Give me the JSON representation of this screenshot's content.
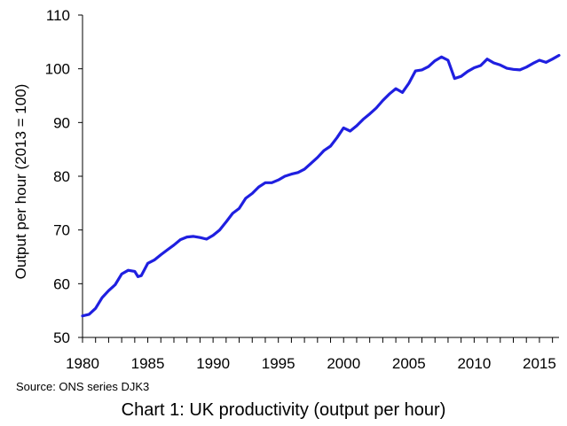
{
  "chart_data": {
    "type": "line",
    "title": "",
    "xlabel": "",
    "ylabel": "Output per hour (2013 = 100)",
    "xlim": [
      1980,
      2016.5
    ],
    "ylim": [
      50,
      110
    ],
    "yticks": [
      50,
      60,
      70,
      80,
      90,
      100,
      110
    ],
    "xtick_labels": [
      "1980",
      "1985",
      "1990",
      "1995",
      "2000",
      "2005",
      "2010",
      "2015"
    ],
    "xtick_positions": [
      1980,
      1985,
      1990,
      1995,
      2000,
      2005,
      2010,
      2015
    ],
    "grid": false,
    "legend": "none",
    "series": [
      {
        "color": "#1f1fe0",
        "x": [
          1980.0,
          1980.5,
          1981.0,
          1981.5,
          1982.0,
          1982.5,
          1983.0,
          1983.5,
          1984.0,
          1984.25,
          1984.5,
          1985.0,
          1985.5,
          1986.0,
          1986.5,
          1987.0,
          1987.5,
          1988.0,
          1988.5,
          1989.0,
          1989.5,
          1990.0,
          1990.5,
          1991.0,
          1991.5,
          1992.0,
          1992.5,
          1993.0,
          1993.5,
          1994.0,
          1994.5,
          1995.0,
          1995.5,
          1996.0,
          1996.5,
          1997.0,
          1997.5,
          1998.0,
          1998.5,
          1999.0,
          1999.5,
          2000.0,
          2000.5,
          2001.0,
          2001.5,
          2002.0,
          2002.5,
          2003.0,
          2003.5,
          2004.0,
          2004.5,
          2005.0,
          2005.5,
          2006.0,
          2006.5,
          2007.0,
          2007.5,
          2008.0,
          2008.5,
          2009.0,
          2009.5,
          2010.0,
          2010.5,
          2011.0,
          2011.5,
          2012.0,
          2012.5,
          2013.0,
          2013.5,
          2014.0,
          2014.5,
          2015.0,
          2015.5,
          2016.0,
          2016.5
        ],
        "values": [
          54.0,
          54.3,
          55.4,
          57.4,
          58.7,
          59.8,
          61.8,
          62.5,
          62.3,
          61.3,
          61.5,
          63.8,
          64.4,
          65.4,
          66.3,
          67.2,
          68.2,
          68.7,
          68.8,
          68.6,
          68.3,
          69.0,
          70.0,
          71.5,
          73.1,
          74.0,
          75.9,
          76.8,
          78.0,
          78.8,
          78.8,
          79.3,
          80.0,
          80.4,
          80.7,
          81.3,
          82.4,
          83.5,
          84.8,
          85.6,
          87.2,
          89.0,
          88.4,
          89.4,
          90.6,
          91.6,
          92.7,
          94.1,
          95.3,
          96.3,
          95.6,
          97.3,
          99.6,
          99.8,
          100.4,
          101.5,
          102.2,
          101.6,
          98.2,
          98.6,
          99.5,
          100.2,
          100.6,
          101.8,
          101.1,
          100.7,
          100.1,
          99.9,
          99.8,
          100.3,
          101.0,
          101.6,
          101.2,
          101.8,
          102.5
        ]
      }
    ]
  },
  "source_text": "Source: ONS series DJK3",
  "caption_text": "Chart 1: UK productivity (output per hour)"
}
